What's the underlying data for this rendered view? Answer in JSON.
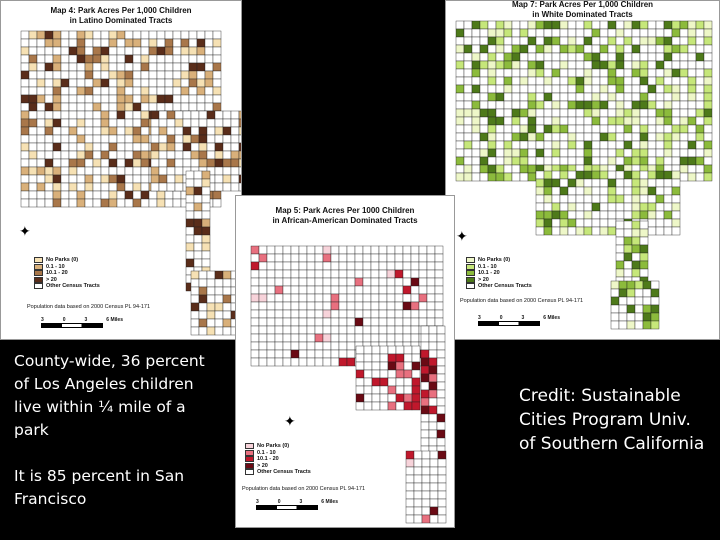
{
  "maps": [
    {
      "id": "map4",
      "title_line1": "Map 4: Park Acres Per 1,000 Children",
      "title_line2": "in Latino Dominated Tracts",
      "legend": [
        "No Parks (0)",
        "0.1 - 10",
        "10.1 - 20",
        "> 20",
        "Other Census Tracts"
      ],
      "legend_colors": [
        "#f6e1b4",
        "#d9b07a",
        "#a9774a",
        "#5a2d1a",
        "#ffffff"
      ],
      "note": "Population data based on 2000 Census PL 94-171",
      "scale_labels": [
        "3",
        "0",
        "3",
        "6 Miles"
      ]
    },
    {
      "id": "map5",
      "title_line1": "Map 5: Park Acres Per 1000 Children",
      "title_line2": "in African-American Dominated Tracts",
      "legend": [
        "No Parks (0)",
        "0.1 - 10",
        "10.1 - 20",
        "> 20",
        "Other Census Tracts"
      ],
      "legend_colors": [
        "#f7d3da",
        "#e8707f",
        "#c0182c",
        "#6a0a14",
        "#ffffff"
      ],
      "note": "Population data based on 2000 Census PL 94-171",
      "scale_labels": [
        "3",
        "0",
        "3",
        "6 Miles"
      ]
    },
    {
      "id": "map7",
      "title_line1": "Map 7: Park Acres Per 1,000 Children",
      "title_line2": "in White Dominated Tracts",
      "legend": [
        "No Parks (0)",
        "0.1 - 10",
        "10.1 - 20",
        "> 20",
        "Other Census Tracts"
      ],
      "legend_colors": [
        "#eef7c8",
        "#c6e77a",
        "#8cbb3c",
        "#4e7a1a",
        "#ffffff"
      ],
      "note": "Population data based on 2000 Census PL 94-171",
      "scale_labels": [
        "3",
        "0",
        "3",
        "6 Miles"
      ]
    }
  ],
  "left_caption": {
    "para1": "County-wide, 36 percent of Los Angeles children live within ¼ mile of a park",
    "para2": "It is 85 percent in San Francisco"
  },
  "credit": "Credit: Sustainable Cities Program Univ. of Southern California"
}
